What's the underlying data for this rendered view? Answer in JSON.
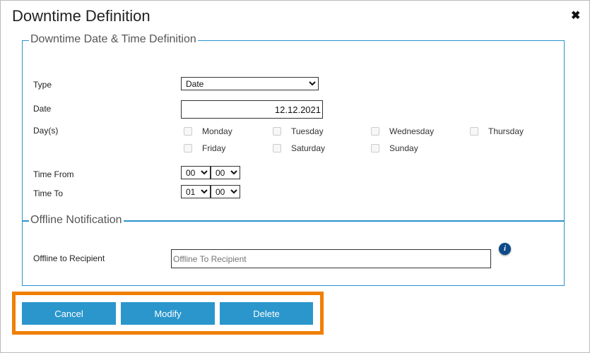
{
  "dialog": {
    "title": "Downtime Definition",
    "close_icon": "close-icon"
  },
  "section1": {
    "legend": "Downtime Date & Time Definition",
    "type_label": "Type",
    "type_value": "Date",
    "date_label": "Date",
    "date_value": "12.12.2021",
    "days_label": "Day(s)",
    "days": [
      {
        "label": "Monday",
        "checked": false
      },
      {
        "label": "Tuesday",
        "checked": false
      },
      {
        "label": "Wednesday",
        "checked": false
      },
      {
        "label": "Thursday",
        "checked": false
      },
      {
        "label": "Friday",
        "checked": false
      },
      {
        "label": "Saturday",
        "checked": false
      },
      {
        "label": "Sunday",
        "checked": false
      }
    ],
    "time_from_label": "Time From",
    "time_from_hour": "00",
    "time_from_min": "00",
    "time_to_label": "Time To",
    "time_to_hour": "01",
    "time_to_min": "00"
  },
  "section2": {
    "legend": "Offline Notification",
    "recipient_label": "Offline to Recipient",
    "recipient_value": "",
    "recipient_placeholder": "Offline To Recipient",
    "info_icon": "i"
  },
  "buttons": {
    "cancel": "Cancel",
    "modify": "Modify",
    "delete": "Delete"
  },
  "colors": {
    "accent": "#2a96cc",
    "highlight": "#f07f00",
    "info": "#0d4a8a"
  }
}
